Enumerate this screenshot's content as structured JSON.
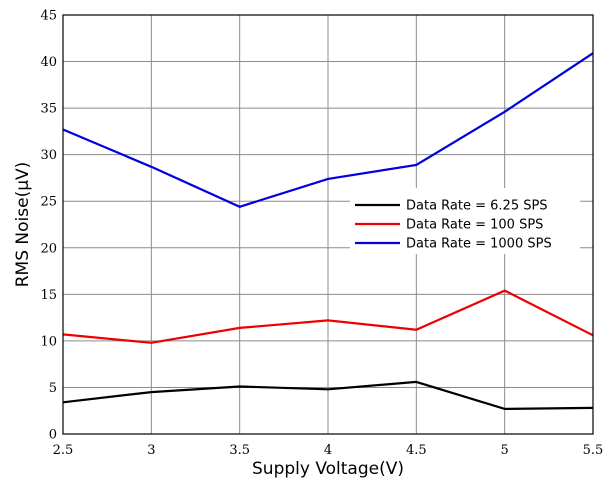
{
  "chart_data": {
    "type": "line",
    "title": "",
    "xlabel": "Supply Voltage(V)",
    "ylabel": "RMS Noise(µV)",
    "x": [
      2.5,
      3,
      3.5,
      4,
      4.5,
      5,
      5.5
    ],
    "x_tick_labels": [
      "2.5",
      "3",
      "3.5",
      "4",
      "4.5",
      "5",
      "5.5"
    ],
    "xlim": [
      2.5,
      5.5
    ],
    "ylim": [
      0,
      45
    ],
    "y_ticks": [
      0,
      5,
      10,
      15,
      20,
      25,
      30,
      35,
      40,
      45
    ],
    "y_tick_labels": [
      "0",
      "5",
      "10",
      "15",
      "20",
      "25",
      "30",
      "35",
      "40",
      "45"
    ],
    "grid": true,
    "legend_position": "center-right",
    "series": [
      {
        "name": "Data Rate = 6.25 SPS",
        "color": "#000000",
        "values": [
          3.4,
          4.5,
          5.1,
          4.8,
          5.6,
          2.7,
          2.8
        ]
      },
      {
        "name": "Data Rate = 100 SPS",
        "color": "#ee0000",
        "values": [
          10.7,
          9.8,
          11.4,
          12.2,
          11.2,
          15.4,
          10.6
        ]
      },
      {
        "name": "Data Rate = 1000 SPS",
        "color": "#0000dd",
        "values": [
          32.7,
          28.7,
          24.4,
          27.4,
          28.9,
          34.6,
          40.9
        ]
      }
    ]
  }
}
